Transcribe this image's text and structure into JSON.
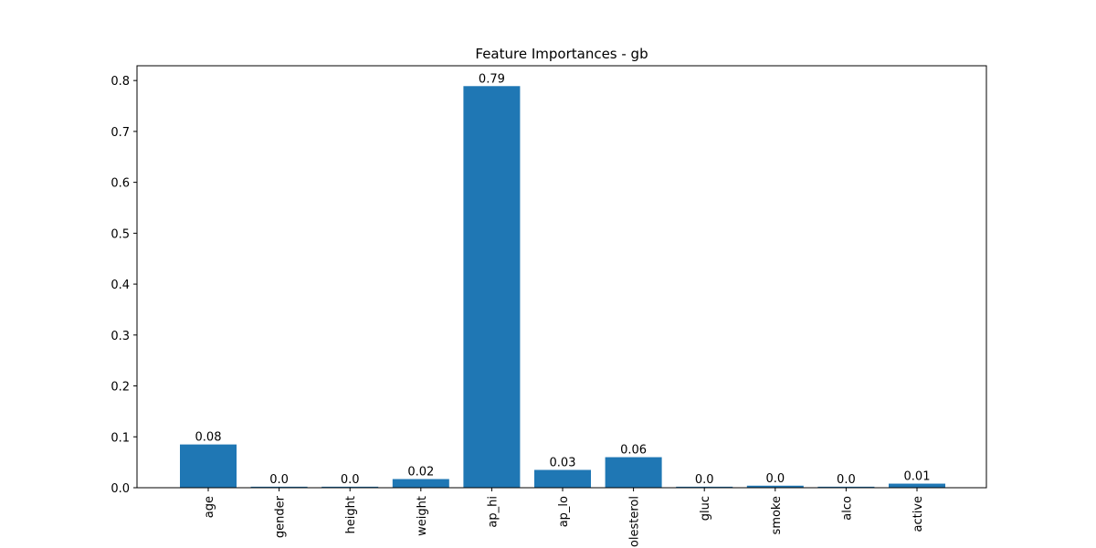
{
  "chart_data": {
    "type": "bar",
    "title": "Feature Importances - gb",
    "xlabel": "",
    "ylabel": "",
    "categories": [
      "age",
      "gender",
      "height",
      "weight",
      "ap_hi",
      "ap_lo",
      "cholesterol",
      "gluc",
      "smoke",
      "alco",
      "active"
    ],
    "values": [
      0.085,
      0.002,
      0.002,
      0.017,
      0.789,
      0.035,
      0.06,
      0.002,
      0.004,
      0.002,
      0.008
    ],
    "data_labels": [
      "0.08",
      "0.0",
      "0.0",
      "0.02",
      "0.79",
      "0.03",
      "0.06",
      "0.0",
      "0.0",
      "0.0",
      "0.01"
    ],
    "yticks": [
      "0.0",
      "0.1",
      "0.2",
      "0.3",
      "0.4",
      "0.5",
      "0.6",
      "0.7",
      "0.8"
    ],
    "ylim": [
      0,
      0.829
    ],
    "grid": false,
    "legend": "none",
    "bar_color": "#1f77b4",
    "tick_label_rotation": "vertical"
  }
}
